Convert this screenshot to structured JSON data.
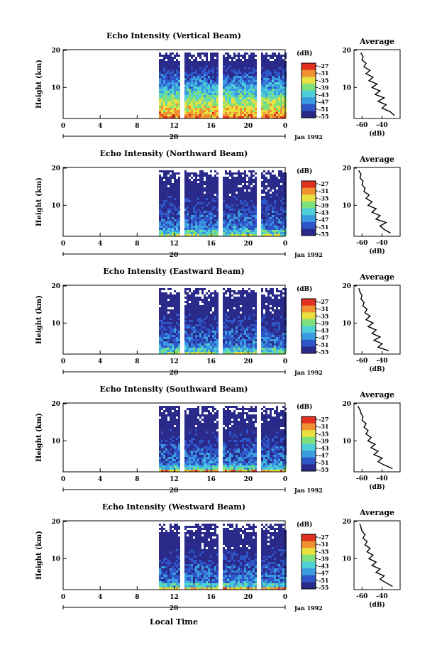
{
  "chart_data": [
    {
      "type": "heatmap",
      "title": "Echo Intensity (Vertical Beam)",
      "ylabel": "Height (km)",
      "y_ticks": [
        "20",
        "10"
      ],
      "x_ticks": [
        "0",
        "4",
        "8",
        "12",
        "16",
        "20",
        "0"
      ],
      "date_center": "20",
      "date_label": "Jan 1992",
      "xlim": [
        0,
        24
      ],
      "ylim": [
        0,
        20
      ],
      "colorbar": {
        "title": "(dB)",
        "ticks": [
          "-27",
          "-31",
          "-35",
          "-39",
          "-43",
          "-47",
          "-51",
          "-55"
        ]
      },
      "profile": {
        "title": "Average",
        "xlabel": "(dB)",
        "x_ticks": [
          "-60",
          "-40"
        ],
        "y_ticks": [
          "20",
          "10"
        ],
        "heights": [
          1,
          2,
          3,
          4,
          5,
          6,
          7,
          8,
          9,
          10,
          11,
          12,
          13,
          14,
          15,
          16,
          17,
          18,
          19
        ],
        "values": [
          -28,
          -32,
          -40,
          -36,
          -44,
          -38,
          -47,
          -42,
          -50,
          -45,
          -53,
          -49,
          -56,
          -52,
          -58,
          -56,
          -60,
          -59,
          -61
        ]
      }
    },
    {
      "type": "heatmap",
      "title": "Echo Intensity (Northward Beam)",
      "ylabel": "Height (km)",
      "y_ticks": [
        "20",
        "10"
      ],
      "x_ticks": [
        "0",
        "4",
        "8",
        "12",
        "16",
        "20",
        "0"
      ],
      "date_center": "20",
      "date_label": "Jan 1992",
      "xlim": [
        0,
        24
      ],
      "ylim": [
        0,
        20
      ],
      "colorbar": {
        "title": "(dB)",
        "ticks": [
          "-27",
          "-31",
          "-35",
          "-39",
          "-43",
          "-47",
          "-51",
          "-55"
        ]
      },
      "profile": {
        "title": "Average",
        "xlabel": "(dB)",
        "x_ticks": [
          "-60",
          "-40"
        ],
        "y_ticks": [
          "20",
          "10"
        ],
        "heights": [
          1,
          2,
          3,
          4,
          5,
          6,
          7,
          8,
          9,
          10,
          11,
          12,
          13,
          14,
          15,
          16,
          17,
          18,
          19
        ],
        "values": [
          -32,
          -38,
          -42,
          -36,
          -46,
          -42,
          -50,
          -46,
          -54,
          -50,
          -56,
          -53,
          -58,
          -57,
          -60,
          -59,
          -62,
          -61,
          -63
        ]
      }
    },
    {
      "type": "heatmap",
      "title": "Echo Intensity (Eastward Beam)",
      "ylabel": "Height (km)",
      "y_ticks": [
        "20",
        "10"
      ],
      "x_ticks": [
        "0",
        "4",
        "8",
        "12",
        "16",
        "20",
        "0"
      ],
      "date_center": "20",
      "date_label": "Jan 1992",
      "xlim": [
        0,
        24
      ],
      "ylim": [
        0,
        20
      ],
      "colorbar": {
        "title": "(dB)",
        "ticks": [
          "-27",
          "-31",
          "-35",
          "-39",
          "-43",
          "-47",
          "-51",
          "-55"
        ]
      },
      "profile": {
        "title": "Average",
        "xlabel": "(dB)",
        "x_ticks": [
          "-60",
          "-40"
        ],
        "y_ticks": [
          "20",
          "10"
        ],
        "heights": [
          1,
          2,
          3,
          4,
          5,
          6,
          7,
          8,
          9,
          10,
          11,
          12,
          13,
          14,
          15,
          16,
          17,
          18,
          19
        ],
        "values": [
          -34,
          -44,
          -40,
          -48,
          -42,
          -50,
          -46,
          -54,
          -49,
          -56,
          -52,
          -57,
          -55,
          -59,
          -58,
          -61,
          -60,
          -62,
          -63
        ]
      }
    },
    {
      "type": "heatmap",
      "title": "Echo Intensity (Southward Beam)",
      "ylabel": "Height (km)",
      "y_ticks": [
        "20",
        "10"
      ],
      "x_ticks": [
        "0",
        "4",
        "8",
        "12",
        "16",
        "20",
        "0"
      ],
      "date_center": "20",
      "date_label": "Jan 1992",
      "xlim": [
        0,
        24
      ],
      "ylim": [
        0,
        20
      ],
      "colorbar": {
        "title": "(dB)",
        "ticks": [
          "-27",
          "-31",
          "-35",
          "-39",
          "-43",
          "-47",
          "-51",
          "-55"
        ]
      },
      "profile": {
        "title": "Average",
        "xlabel": "(dB)",
        "x_ticks": [
          "-60",
          "-40"
        ],
        "y_ticks": [
          "20",
          "10"
        ],
        "heights": [
          1,
          2,
          3,
          4,
          5,
          6,
          7,
          8,
          9,
          10,
          11,
          12,
          13,
          14,
          15,
          16,
          17,
          18,
          19
        ],
        "values": [
          -30,
          -38,
          -44,
          -40,
          -48,
          -44,
          -51,
          -47,
          -54,
          -51,
          -56,
          -54,
          -58,
          -56,
          -60,
          -59,
          -61,
          -62,
          -64
        ]
      }
    },
    {
      "type": "heatmap",
      "title": "Echo Intensity (Westward Beam)",
      "ylabel": "Height (km)",
      "y_ticks": [
        "20",
        "10"
      ],
      "x_ticks": [
        "0",
        "4",
        "8",
        "12",
        "16",
        "20",
        "0"
      ],
      "date_center": "20",
      "date_label": "Jan 1992",
      "xlim": [
        0,
        24
      ],
      "ylim": [
        0,
        20
      ],
      "colorbar": {
        "title": "(dB)",
        "ticks": [
          "-27",
          "-31",
          "-35",
          "-39",
          "-43",
          "-47",
          "-51",
          "-55"
        ]
      },
      "profile": {
        "title": "Average",
        "xlabel": "(dB)",
        "x_ticks": [
          "-60",
          "-40"
        ],
        "y_ticks": [
          "20",
          "10"
        ],
        "heights": [
          1,
          2,
          3,
          4,
          5,
          6,
          7,
          8,
          9,
          10,
          11,
          12,
          13,
          14,
          15,
          16,
          17,
          18,
          19
        ],
        "values": [
          -30,
          -36,
          -42,
          -38,
          -46,
          -42,
          -50,
          -46,
          -53,
          -49,
          -55,
          -52,
          -57,
          -55,
          -59,
          -57,
          -60,
          -61,
          -62
        ]
      }
    }
  ],
  "xlabel": "Local Time",
  "colors": {
    "scale": [
      "#2a2a8a",
      "#2f56c8",
      "#3a9be0",
      "#4fd0d8",
      "#7ee07a",
      "#e8e040",
      "#f09030",
      "#e03020"
    ]
  }
}
